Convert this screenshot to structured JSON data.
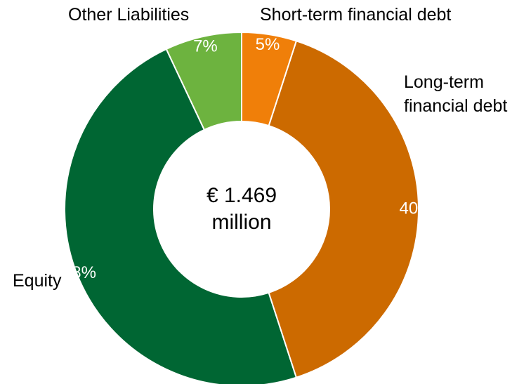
{
  "chart_data": {
    "type": "donut",
    "categories": [
      "Short-term financial debt",
      "Long-term financial debt",
      "Equity",
      "Other Liabilities"
    ],
    "values": [
      5,
      40,
      48,
      7
    ],
    "value_labels": [
      "5%",
      "40%",
      "48%",
      "7%"
    ],
    "colors": [
      "#f07f09",
      "#cc6a00",
      "#006633",
      "#6db33f"
    ],
    "center_label": [
      "€ 1.469",
      "million"
    ]
  }
}
